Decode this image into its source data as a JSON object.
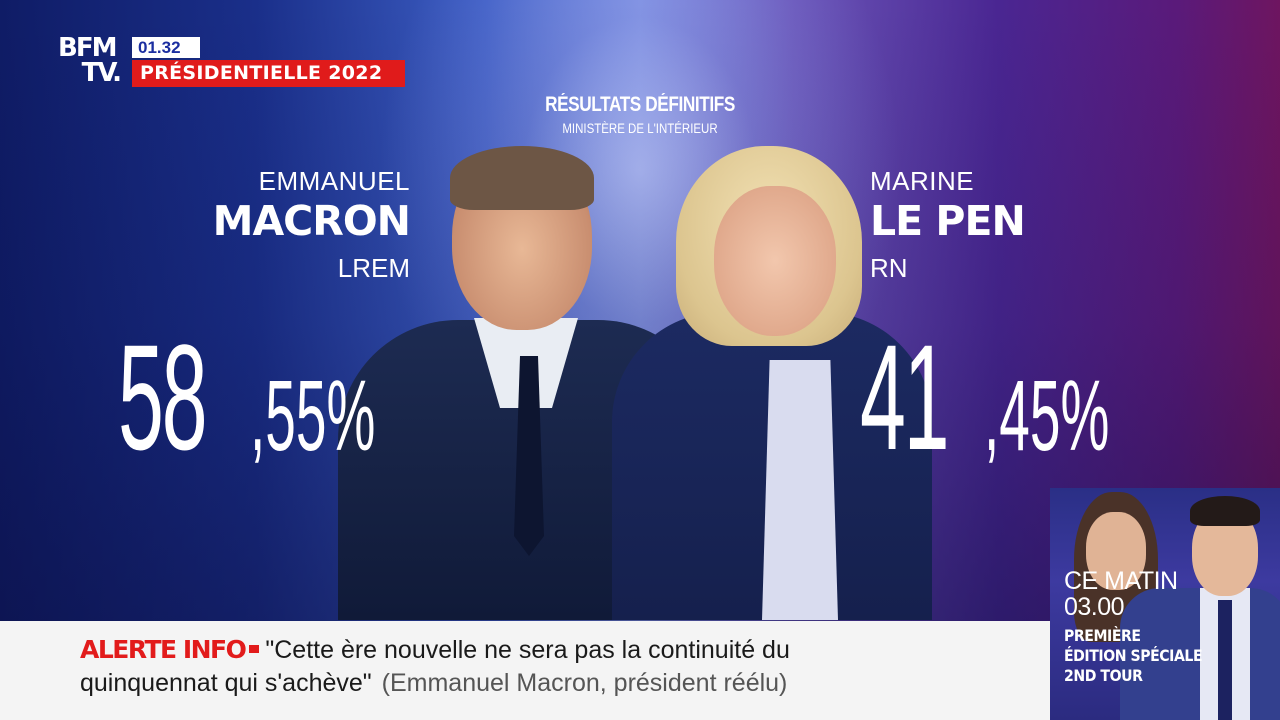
{
  "header": {
    "logo_line1": "BFM",
    "logo_line2": "TV.",
    "clock": "01.32",
    "program": "PRÉSIDENTIELLE 2022"
  },
  "results": {
    "title": "RÉSULTATS DÉFINITIFS",
    "source": "MINISTÈRE DE L'INTÉRIEUR"
  },
  "candidates": [
    {
      "first_name": "EMMANUEL",
      "last_name": "MACRON",
      "party": "LREM",
      "score_int": "58",
      "score_dec": ",55%",
      "score": 58.55
    },
    {
      "first_name": "MARINE",
      "last_name": "LE PEN",
      "party": "RN",
      "score_int": "41",
      "score_dec": ",45%",
      "score": 41.45
    }
  ],
  "promo": {
    "when_line1": "CE MATIN",
    "when_line2": "03.00",
    "title_line1": "PREMIÈRE",
    "title_line2": "ÉDITION SPÉCIALE",
    "title_line3": "2ND TOUR"
  },
  "ticker": {
    "label": "ALERTE INFO",
    "quote_line1": "\"Cette ère nouvelle ne sera pas la continuité du",
    "quote_line2": "quinquennat qui s'achève\"",
    "attribution": "(Emmanuel Macron, président réélu)"
  },
  "colors": {
    "brand_red": "#e01b1b",
    "clock_blue": "#1b2ea0",
    "ticker_bg": "#f4f4f4"
  }
}
